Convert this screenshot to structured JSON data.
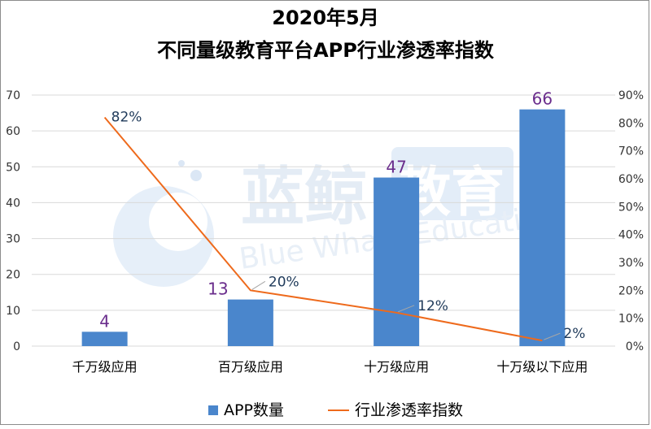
{
  "chart_data": {
    "type": "bar",
    "title_line1": "2020年5月",
    "title_line2": "不同量级教育平台APP行业渗透率指数",
    "categories": [
      "千万级应用",
      "百万级应用",
      "十万级应用",
      "十万级以下应用"
    ],
    "series": [
      {
        "name": "APP数量",
        "type": "bar",
        "axis": "left",
        "values": [
          4,
          13,
          47,
          66
        ],
        "labels": [
          "4",
          "13",
          "47",
          "66"
        ]
      },
      {
        "name": "行业渗透率指数",
        "type": "line",
        "axis": "right",
        "values": [
          82,
          20,
          12,
          2
        ],
        "labels": [
          "82%",
          "20%",
          "12%",
          "2%"
        ]
      }
    ],
    "y_left": {
      "min": 0,
      "max": 70,
      "ticks": [
        "0",
        "10",
        "20",
        "30",
        "40",
        "50",
        "60",
        "70"
      ]
    },
    "y_right": {
      "min": 0,
      "max": 90,
      "ticks": [
        "0%",
        "10%",
        "20%",
        "30%",
        "40%",
        "50%",
        "60%",
        "70%",
        "80%",
        "90%"
      ]
    },
    "grid": true,
    "legend_position": "bottom"
  },
  "watermark": {
    "brand_cn_1": "蓝鲸",
    "brand_cn_2": "教育",
    "brand_en": "Blue Whale Education"
  },
  "colors": {
    "bar": "#4a86cc",
    "line": "#ee6a1c",
    "bar_label": "#6a2d8c",
    "line_label": "#1f3a5a",
    "grid": "#d9d9d9",
    "axis_text": "#333333",
    "watermark": "#dde9f6"
  }
}
